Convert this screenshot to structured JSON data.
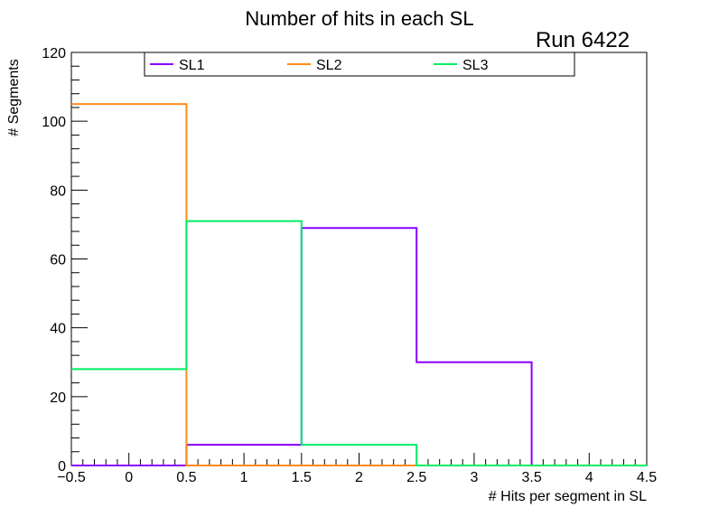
{
  "chart_data": {
    "type": "histogram-step",
    "title": "Number of hits in each SL",
    "annotation": "Run 6422",
    "xlabel": "# Hits per segment in SL",
    "ylabel": "# Segments",
    "xlim": [
      -0.5,
      4.5
    ],
    "ylim": [
      0,
      120
    ],
    "bin_edges": [
      -0.5,
      0.5,
      1.5,
      2.5,
      3.5,
      4.5
    ],
    "x_ticks": [
      -0.5,
      0,
      0.5,
      1,
      1.5,
      2,
      2.5,
      3,
      3.5,
      4,
      4.5
    ],
    "x_tick_labels": [
      "−0.5",
      "0",
      "0.5",
      "1",
      "1.5",
      "2",
      "2.5",
      "3",
      "3.5",
      "4",
      "4.5"
    ],
    "y_ticks": [
      0,
      20,
      40,
      60,
      80,
      100,
      120
    ],
    "y_tick_labels": [
      "0",
      "20",
      "40",
      "60",
      "80",
      "100",
      "120"
    ],
    "grid": false,
    "legend_position": "top",
    "series": [
      {
        "name": "SL1",
        "color": "#8b00ff",
        "values": [
          0,
          6,
          69,
          30,
          0
        ]
      },
      {
        "name": "SL2",
        "color": "#ff8c1a",
        "values": [
          105,
          0,
          0,
          0,
          0
        ]
      },
      {
        "name": "SL3",
        "color": "#00ee66",
        "values": [
          28,
          71,
          6,
          0,
          0
        ]
      }
    ]
  }
}
